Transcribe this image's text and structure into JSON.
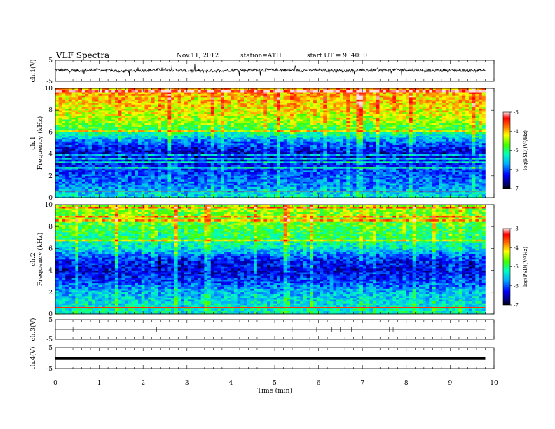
{
  "header": {
    "title": "VLF Spectra",
    "date": "Nov.11, 2012",
    "station": "station=ATH",
    "start": "start  UT  =   9 :40: 0"
  },
  "chart_data": [
    {
      "type": "line",
      "name": "ch1",
      "ylabel": "ch.1(V)",
      "ylim": [
        -5,
        5
      ],
      "yticks": [
        "5",
        "-5"
      ],
      "x": [
        0,
        0.5,
        1,
        1.5,
        2,
        2.5,
        3,
        3.5,
        4,
        4.5,
        5,
        5.5,
        6,
        6.5,
        7,
        7.5,
        8,
        8.5,
        9,
        9.5,
        9.8
      ],
      "y": [
        0.3,
        0.1,
        0.4,
        -0.2,
        0.2,
        0.5,
        0.1,
        -0.1,
        0.3,
        0.2,
        0.4,
        0.1,
        0.3,
        0.0,
        0.2,
        0.3,
        0.4,
        0.1,
        0.2,
        0.1,
        0.2
      ]
    },
    {
      "type": "heatmap",
      "name": "ch1-spectrogram",
      "ylabel_channel": "ch.1",
      "ylabel": "Frequency  (kHz)",
      "ylim": [
        0,
        10
      ],
      "yticks": [
        "0",
        "2",
        "4",
        "6",
        "8",
        "10"
      ],
      "colorbar_label": "log(PSD)(V²/Hz)",
      "colorbar_range": [
        -7,
        -3
      ],
      "colorbar_ticks": [
        "-3",
        "-4",
        "-5",
        "-6",
        "-7"
      ],
      "frequency_profile_kHz": [
        0,
        1,
        2,
        3,
        4,
        5,
        6,
        7,
        8,
        9,
        10
      ],
      "log_psd_profile": [
        -5.3,
        -5.8,
        -6.0,
        -6.2,
        -6.5,
        -6.0,
        -5.0,
        -4.5,
        -4.2,
        -4.0,
        -3.9
      ]
    },
    {
      "type": "heatmap",
      "name": "ch2-spectrogram",
      "ylabel_channel": "ch.2",
      "ylabel": "Frequency  (kHz)",
      "ylim": [
        0,
        10
      ],
      "yticks": [
        "0",
        "2",
        "4",
        "6",
        "8",
        "10"
      ],
      "colorbar_label": "log(PSD)(V²/Hz)",
      "colorbar_range": [
        -7,
        -3
      ],
      "colorbar_ticks": [
        "-3",
        "-4",
        "-5",
        "-6",
        "-7"
      ],
      "frequency_profile_kHz": [
        0,
        1,
        2,
        3,
        4,
        5,
        6,
        7,
        8,
        9,
        10
      ],
      "log_psd_profile": [
        -5.2,
        -5.4,
        -5.6,
        -6.1,
        -6.4,
        -6.2,
        -5.4,
        -5.0,
        -4.8,
        -4.6,
        -4.5
      ]
    },
    {
      "type": "line",
      "name": "ch3",
      "ylabel": "ch.3(V)",
      "ylim": [
        -5,
        5
      ],
      "yticks": [
        "5",
        "-5"
      ],
      "x": [
        0,
        9.8
      ],
      "y": [
        0,
        0
      ]
    },
    {
      "type": "line",
      "name": "ch4",
      "ylabel": "ch.4(V)",
      "ylim": [
        -5,
        5
      ],
      "yticks": [
        "5",
        "-5"
      ],
      "x": [
        0,
        9.8
      ],
      "y": [
        0,
        0
      ]
    }
  ],
  "xaxis": {
    "label": "Time  (min)",
    "xlim": [
      0,
      10
    ],
    "ticks": [
      "0",
      "1",
      "2",
      "3",
      "4",
      "5",
      "6",
      "7",
      "8",
      "9",
      "10"
    ]
  }
}
